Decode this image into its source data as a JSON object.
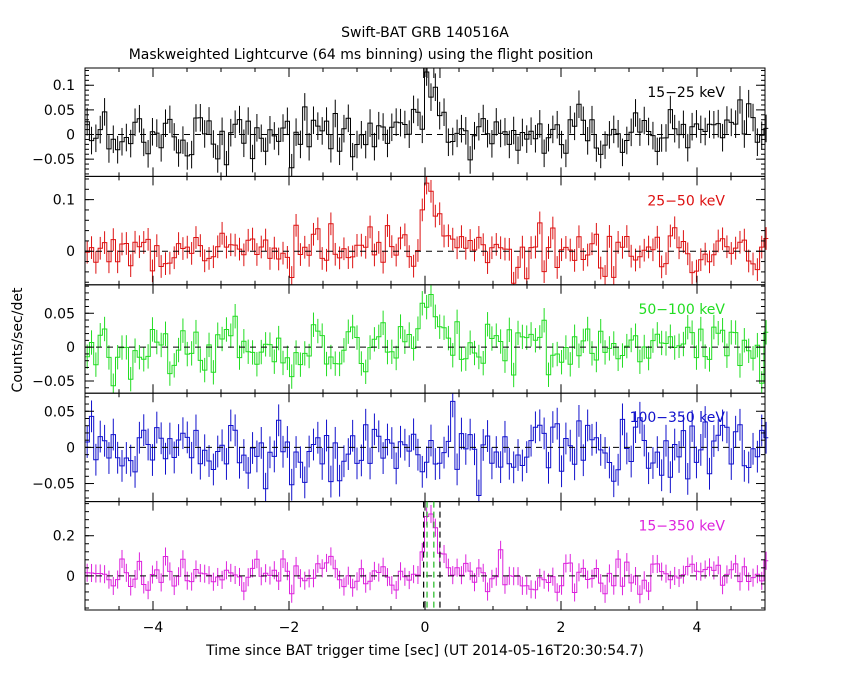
{
  "title": "Swift-BAT GRB 140516A",
  "subtitle": "Maskweighted Lightcurve (64 ms binning) using the flight position",
  "chart_data": {
    "type": "line",
    "xlabel": "Time since BAT trigger time [sec] (UT 2014-05-16T20:30:54.7)",
    "ylabel": "Counts/sec/det",
    "xlim": [
      -5,
      5
    ],
    "xticks": [
      -4,
      -2,
      0,
      2,
      4
    ],
    "xtick_labels": [
      "−4",
      "−2",
      "0",
      "2",
      "4"
    ],
    "bin_width": 0.064,
    "trigger_markers_t": [
      -0.02,
      0.03,
      0.13,
      0.22
    ],
    "panels": [
      {
        "name": "15−25 keV",
        "color": "#000000",
        "ylim": [
          -0.085,
          0.135
        ],
        "yticks": [
          -0.05,
          0,
          0.05,
          0.1
        ],
        "ytick_labels": [
          "−0.05",
          "0",
          "0.05",
          "0.1"
        ],
        "err": 0.028,
        "peaks": [
          [
            -0.5,
            0.03
          ],
          [
            -0.1,
            0.045
          ],
          [
            0.05,
            0.11
          ],
          [
            0.12,
            0.09
          ],
          [
            0.25,
            0.035
          ]
        ],
        "noise": 0.027
      },
      {
        "name": "25−50 keV",
        "color": "#dd1111",
        "ylim": [
          -0.065,
          0.145
        ],
        "yticks": [
          0,
          0.1
        ],
        "ytick_labels": [
          "0",
          "0.1"
        ],
        "err": 0.022,
        "peaks": [
          [
            -0.3,
            0.035
          ],
          [
            -0.05,
            0.07
          ],
          [
            0.05,
            0.13
          ],
          [
            0.12,
            0.115
          ],
          [
            0.2,
            0.07
          ],
          [
            0.3,
            0.025
          ]
        ],
        "noise": 0.022
      },
      {
        "name": "50−100 keV",
        "color": "#22dd22",
        "ylim": [
          -0.068,
          0.092
        ],
        "yticks": [
          -0.05,
          0,
          0.05
        ],
        "ytick_labels": [
          "−0.05",
          "0",
          "0.05"
        ],
        "err": 0.018,
        "peaks": [
          [
            -0.1,
            0.03
          ],
          [
            0.0,
            0.06
          ],
          [
            0.07,
            0.07
          ],
          [
            0.15,
            0.05
          ],
          [
            0.25,
            0.025
          ]
        ],
        "noise": 0.02
      },
      {
        "name": "100−350 keV",
        "color": "#1111cc",
        "ylim": [
          -0.075,
          0.075
        ],
        "yticks": [
          -0.05,
          0,
          0.05
        ],
        "ytick_labels": [
          "−0.05",
          "0",
          "0.05"
        ],
        "err": 0.022,
        "peaks": [
          [
            0.1,
            0.02
          ]
        ],
        "noise": 0.025
      },
      {
        "name": "15−350 keV",
        "color": "#dd22dd",
        "ylim": [
          -0.17,
          0.37
        ],
        "yticks": [
          0,
          0.2
        ],
        "ytick_labels": [
          "0",
          "0.2"
        ],
        "err": 0.045,
        "peaks": [
          [
            -0.05,
            0.12
          ],
          [
            0.03,
            0.3
          ],
          [
            0.1,
            0.33
          ],
          [
            0.17,
            0.25
          ],
          [
            0.25,
            0.12
          ],
          [
            0.33,
            0.04
          ]
        ],
        "noise": 0.045
      }
    ]
  }
}
